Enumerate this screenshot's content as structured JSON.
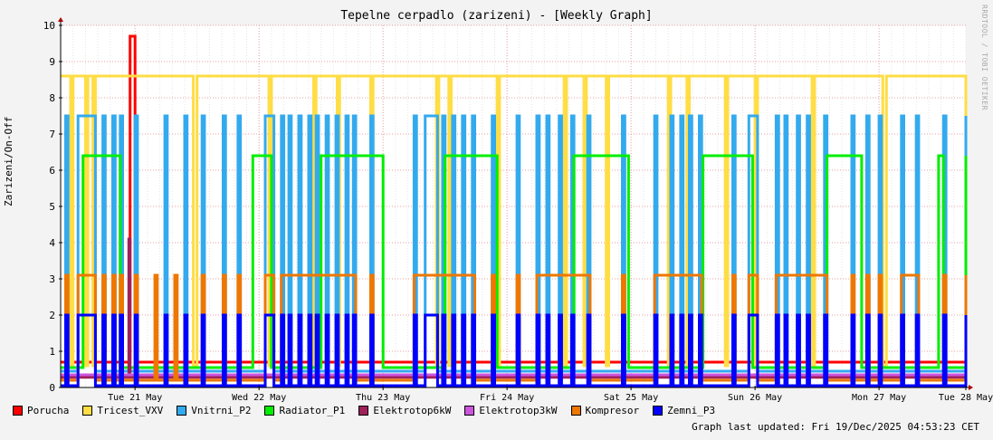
{
  "title": "Tepelne cerpadlo (zarizeni) - [Weekly Graph]",
  "watermark": "RRDTOOL / TOBI OETIKER",
  "last_updated": "Graph last updated: Fri 19/Dec/2025 04:53:23 CET",
  "chart_data": {
    "type": "line",
    "title": "Tepelne cerpadlo (zarizeni) - [Weekly Graph]",
    "ylabel": "Zarizeni/On-Off",
    "xlabel": "",
    "ylim": [
      0,
      10
    ],
    "xlim": [
      0,
      7.3
    ],
    "yticks": [
      0,
      1,
      2,
      3,
      4,
      5,
      6,
      7,
      8,
      9,
      10
    ],
    "xticks": [
      {
        "label": "Tue 21 May",
        "pos": 0.6
      },
      {
        "label": "Wed 22 May",
        "pos": 1.6
      },
      {
        "label": "Thu 23 May",
        "pos": 2.6
      },
      {
        "label": "Fri 24 May",
        "pos": 3.6
      },
      {
        "label": "Sat 25 May",
        "pos": 4.6
      },
      {
        "label": "Sun 26 May",
        "pos": 5.6
      },
      {
        "label": "Mon 27 May",
        "pos": 6.6
      },
      {
        "label": "Tue 28 May",
        "pos": 7.6
      }
    ],
    "grid": true,
    "legend_position": "bottom",
    "series": [
      {
        "name": "Porucha",
        "color": "#ff0000",
        "base": 0.7,
        "high": 9.7,
        "pulses": [
          [
            0.56,
            0.6
          ]
        ]
      },
      {
        "name": "Tricest_VXV",
        "color": "#ffdd44",
        "base": 8.6,
        "low": 0.6,
        "dips": [
          [
            0.08,
            0.1
          ],
          [
            0.2,
            0.22
          ],
          [
            0.26,
            0.28
          ],
          [
            1.07,
            1.1
          ],
          [
            1.68,
            1.7
          ],
          [
            2.04,
            2.06
          ],
          [
            2.23,
            2.25
          ],
          [
            2.5,
            2.52
          ],
          [
            3.03,
            3.05
          ],
          [
            3.13,
            3.15
          ],
          [
            3.52,
            3.54
          ],
          [
            4.06,
            4.08
          ],
          [
            4.22,
            4.24
          ],
          [
            4.4,
            4.42
          ],
          [
            4.9,
            4.92
          ],
          [
            5.05,
            5.07
          ],
          [
            5.36,
            5.38
          ],
          [
            5.6,
            5.62
          ],
          [
            6.06,
            6.08
          ],
          [
            6.63,
            6.66
          ],
          [
            7.4,
            7.42
          ]
        ]
      },
      {
        "name": "Vnitrni_P2",
        "color": "#33aaee",
        "base": 0.45,
        "high": 7.5,
        "pulses": [
          [
            0.04,
            0.06
          ],
          [
            0.14,
            0.28
          ],
          [
            0.34,
            0.36
          ],
          [
            0.42,
            0.44
          ],
          [
            0.48,
            0.5
          ],
          [
            0.6,
            0.62
          ],
          [
            0.84,
            0.86
          ],
          [
            1.0,
            1.02
          ],
          [
            1.14,
            1.16
          ],
          [
            1.31,
            1.33
          ],
          [
            1.43,
            1.45
          ],
          [
            1.65,
            1.72
          ],
          [
            1.78,
            1.8
          ],
          [
            1.84,
            1.86
          ],
          [
            1.92,
            1.94
          ],
          [
            2.0,
            2.02
          ],
          [
            2.06,
            2.08
          ],
          [
            2.14,
            2.16
          ],
          [
            2.22,
            2.24
          ],
          [
            2.3,
            2.32
          ],
          [
            2.36,
            2.38
          ],
          [
            2.5,
            2.52
          ],
          [
            2.85,
            2.87
          ],
          [
            2.94,
            3.04
          ],
          [
            3.08,
            3.1
          ],
          [
            3.16,
            3.18
          ],
          [
            3.24,
            3.26
          ],
          [
            3.32,
            3.34
          ],
          [
            3.48,
            3.5
          ],
          [
            3.68,
            3.7
          ],
          [
            3.84,
            3.86
          ],
          [
            3.92,
            3.94
          ],
          [
            4.02,
            4.04
          ],
          [
            4.12,
            4.14
          ],
          [
            4.25,
            4.27
          ],
          [
            4.53,
            4.55
          ],
          [
            4.79,
            4.81
          ],
          [
            4.92,
            4.94
          ],
          [
            5.0,
            5.02
          ],
          [
            5.07,
            5.09
          ],
          [
            5.15,
            5.17
          ],
          [
            5.42,
            5.44
          ],
          [
            5.55,
            5.62
          ],
          [
            5.77,
            5.79
          ],
          [
            5.84,
            5.86
          ],
          [
            5.94,
            5.96
          ],
          [
            6.02,
            6.04
          ],
          [
            6.16,
            6.18
          ],
          [
            6.38,
            6.4
          ],
          [
            6.5,
            6.52
          ],
          [
            6.6,
            6.62
          ],
          [
            6.78,
            6.8
          ],
          [
            6.9,
            6.92
          ],
          [
            7.12,
            7.14
          ],
          [
            7.34,
            7.36
          ]
        ]
      },
      {
        "name": "Radiator_P1",
        "color": "#00ee00",
        "base": 0.55,
        "high": 6.4,
        "pulses": [
          [
            0.18,
            0.48
          ],
          [
            1.55,
            1.7
          ],
          [
            2.1,
            2.6
          ],
          [
            3.1,
            3.52
          ],
          [
            4.14,
            4.58
          ],
          [
            5.18,
            5.58
          ],
          [
            6.18,
            6.46
          ],
          [
            7.08,
            7.12
          ],
          [
            7.3,
            7.36
          ]
        ]
      },
      {
        "name": "Elektrotop6kW",
        "color": "#a0205a",
        "base": 0.28,
        "high": 4.1,
        "pulses": [
          [
            0.55,
            0.56
          ]
        ]
      },
      {
        "name": "Elektrotop3kW",
        "color": "#cc55dd",
        "base": 0.35,
        "high": 0.35,
        "pulses": []
      },
      {
        "name": "Kompresor",
        "color": "#ee7700",
        "base": 0.2,
        "high": 3.1,
        "pulses": [
          [
            0.04,
            0.06
          ],
          [
            0.14,
            0.28
          ],
          [
            0.34,
            0.36
          ],
          [
            0.42,
            0.44
          ],
          [
            0.48,
            0.5
          ],
          [
            0.6,
            0.62
          ],
          [
            0.76,
            0.78
          ],
          [
            0.92,
            0.94
          ],
          [
            1.14,
            1.16
          ],
          [
            1.31,
            1.33
          ],
          [
            1.43,
            1.45
          ],
          [
            1.65,
            1.72
          ],
          [
            1.78,
            2.38
          ],
          [
            2.5,
            2.52
          ],
          [
            2.85,
            3.34
          ],
          [
            3.48,
            3.5
          ],
          [
            3.68,
            3.7
          ],
          [
            3.84,
            4.27
          ],
          [
            4.53,
            4.55
          ],
          [
            4.79,
            5.17
          ],
          [
            5.42,
            5.44
          ],
          [
            5.55,
            5.62
          ],
          [
            5.77,
            6.18
          ],
          [
            6.38,
            6.4
          ],
          [
            6.5,
            6.52
          ],
          [
            6.6,
            6.62
          ],
          [
            6.78,
            6.92
          ],
          [
            7.12,
            7.14
          ],
          [
            7.34,
            7.36
          ]
        ]
      },
      {
        "name": "Zemni_P3",
        "color": "#0000ff",
        "base": 0.05,
        "high": 2.0,
        "pulses": [
          [
            0.04,
            0.06
          ],
          [
            0.14,
            0.28
          ],
          [
            0.34,
            0.36
          ],
          [
            0.42,
            0.44
          ],
          [
            0.48,
            0.5
          ],
          [
            0.6,
            0.62
          ],
          [
            0.84,
            0.86
          ],
          [
            1.0,
            1.02
          ],
          [
            1.14,
            1.16
          ],
          [
            1.31,
            1.33
          ],
          [
            1.43,
            1.45
          ],
          [
            1.65,
            1.72
          ],
          [
            1.78,
            1.8
          ],
          [
            1.84,
            1.86
          ],
          [
            1.92,
            1.94
          ],
          [
            2.0,
            2.02
          ],
          [
            2.06,
            2.08
          ],
          [
            2.14,
            2.16
          ],
          [
            2.22,
            2.24
          ],
          [
            2.3,
            2.32
          ],
          [
            2.36,
            2.38
          ],
          [
            2.5,
            2.52
          ],
          [
            2.85,
            2.87
          ],
          [
            2.94,
            3.04
          ],
          [
            3.08,
            3.1
          ],
          [
            3.16,
            3.18
          ],
          [
            3.24,
            3.26
          ],
          [
            3.32,
            3.34
          ],
          [
            3.48,
            3.5
          ],
          [
            3.68,
            3.7
          ],
          [
            3.84,
            3.86
          ],
          [
            3.92,
            3.94
          ],
          [
            4.02,
            4.04
          ],
          [
            4.12,
            4.14
          ],
          [
            4.25,
            4.27
          ],
          [
            4.53,
            4.55
          ],
          [
            4.79,
            4.81
          ],
          [
            4.92,
            4.94
          ],
          [
            5.0,
            5.02
          ],
          [
            5.07,
            5.09
          ],
          [
            5.15,
            5.17
          ],
          [
            5.42,
            5.44
          ],
          [
            5.55,
            5.62
          ],
          [
            5.77,
            5.79
          ],
          [
            5.84,
            5.86
          ],
          [
            5.94,
            5.96
          ],
          [
            6.02,
            6.04
          ],
          [
            6.16,
            6.18
          ],
          [
            6.38,
            6.4
          ],
          [
            6.5,
            6.52
          ],
          [
            6.6,
            6.62
          ],
          [
            6.78,
            6.8
          ],
          [
            6.9,
            6.92
          ],
          [
            7.12,
            7.14
          ],
          [
            7.34,
            7.36
          ]
        ]
      }
    ]
  }
}
